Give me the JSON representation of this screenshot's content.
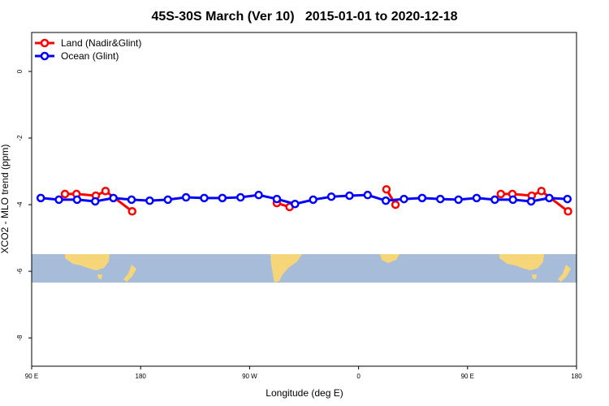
{
  "chart_data": {
    "type": "line",
    "title": "45S-30S March (Ver 10)   2015-01-01 to 2020-12-18",
    "x_label": "Longitude (deg E)",
    "y_label": "XCO2 - MLO trend (ppm)",
    "xlim": [
      90,
      540
    ],
    "xticks": [
      {
        "value": 90,
        "label": "90 E"
      },
      180,
      {
        "value": 270,
        "label": "90 W"
      },
      {
        "value": 360,
        "label": "0"
      },
      {
        "value": 450,
        "label": "90 E"
      },
      {
        "value": 540,
        "label": "180"
      }
    ],
    "ylim": [
      -8.85,
      1.17
    ],
    "yticks": [
      0,
      -2,
      -4,
      -6,
      -8
    ],
    "legend": "top-left",
    "series": [
      {
        "name": "Land (Nadir&Glint)",
        "color": "#ff0000",
        "x": [
          117.5,
          127,
          143,
          151,
          173,
          null,
          292.5,
          303,
          null,
          383,
          390.5,
          null,
          477.5,
          487,
          503,
          511,
          533
        ],
        "values": [
          -3.68,
          -3.68,
          -3.73,
          -3.59,
          -4.2,
          null,
          -3.95,
          -4.07,
          null,
          -3.54,
          -4.0,
          null,
          -3.68,
          -3.68,
          -3.73,
          -3.59,
          -4.2
        ]
      },
      {
        "name": "Ocean (Glint)",
        "color": "#0000ff",
        "x": [
          97.5,
          112.5,
          127.5,
          142.5,
          157.5,
          172.5,
          187.5,
          202.5,
          217.5,
          232.5,
          247.5,
          262.5,
          277.5,
          292.5,
          307.5,
          322.5,
          337.5,
          352.5,
          367.5,
          382.5,
          397.5,
          412.5,
          427.5,
          442.5,
          457.5,
          472.5,
          487.5,
          502.5,
          517.5,
          532.5
        ],
        "values": [
          -3.8,
          -3.85,
          -3.85,
          -3.9,
          -3.8,
          -3.85,
          -3.88,
          -3.85,
          -3.78,
          -3.8,
          -3.8,
          -3.78,
          -3.71,
          -3.83,
          -3.98,
          -3.85,
          -3.76,
          -3.73,
          -3.71,
          -3.88,
          -3.83,
          -3.8,
          -3.83,
          -3.85,
          -3.8,
          -3.85,
          -3.85,
          -3.9,
          -3.8,
          -3.83
        ]
      }
    ]
  }
}
